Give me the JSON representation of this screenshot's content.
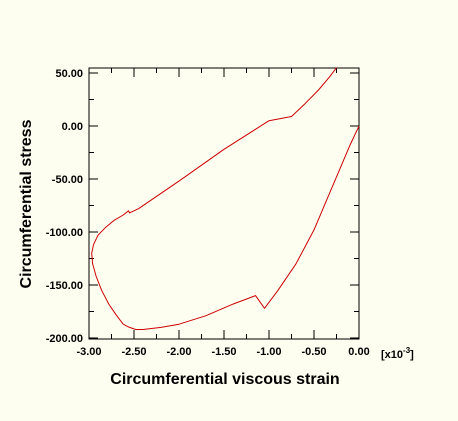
{
  "chart_data": {
    "type": "line",
    "title": "",
    "xlabel": "Circumferential viscous strain",
    "ylabel": "Circumferential stress",
    "x_multiplier_base": "[x10",
    "x_multiplier_exp": "-3",
    "x_multiplier_close": "]",
    "xlim": [
      -3.0,
      0.0
    ],
    "ylim": [
      -200,
      55
    ],
    "x_ticks": [
      -3.0,
      -2.5,
      -2.0,
      -1.5,
      -1.0,
      -0.5,
      0.0
    ],
    "x_tick_labels": [
      "-3.00",
      "-2.50",
      "-2.00",
      "-1.50",
      "-1.00",
      "-0.50",
      "0.00"
    ],
    "y_ticks": [
      -200,
      -150,
      -100,
      -50,
      0,
      50
    ],
    "y_tick_labels": [
      "-200.00",
      "-150.00",
      "-100.00",
      "-50.00",
      "0.00",
      "50.00"
    ],
    "grid": false,
    "series": [
      {
        "color": "#cc0000",
        "x": [
          0.0,
          -0.1,
          -0.2,
          -0.35,
          -0.5,
          -0.7,
          -0.9,
          -1.05,
          -1.15,
          -1.4,
          -1.7,
          -2.0,
          -2.2,
          -2.4,
          -2.48,
          -2.55,
          -2.62,
          -2.7,
          -2.78,
          -2.86,
          -2.92,
          -2.96,
          -2.97,
          -2.95,
          -2.9,
          -2.82,
          -2.72,
          -2.62,
          -2.56,
          -2.55,
          -2.45,
          -2.0,
          -1.5,
          -1.0,
          -0.75,
          -0.6,
          -0.45,
          -0.33,
          -0.25
        ],
        "y": [
          0,
          -18,
          -38,
          -68,
          -98,
          -130,
          -155,
          -172,
          -160,
          -168,
          -179,
          -187,
          -190,
          -192,
          -192,
          -190,
          -187,
          -178,
          -168,
          -155,
          -142,
          -130,
          -120,
          -112,
          -103,
          -96,
          -89,
          -84,
          -80,
          -82,
          -78,
          -52,
          -22,
          5,
          9,
          21,
          34,
          46,
          55
        ]
      }
    ]
  }
}
